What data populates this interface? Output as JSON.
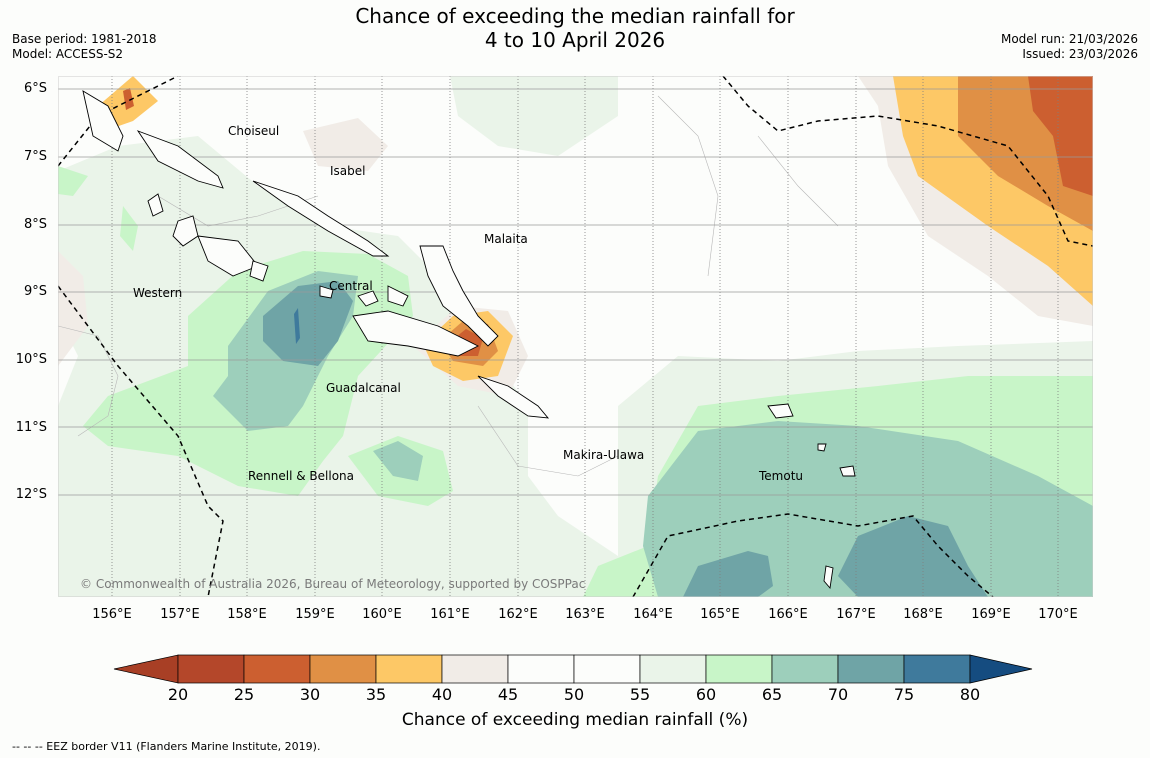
{
  "title": {
    "line1": "Chance of exceeding the median rainfall for",
    "line2": "4 to 10 April 2026"
  },
  "meta_left": {
    "base_period": "Base period: 1981-2018",
    "model": "Model: ACCESS-S2"
  },
  "meta_right": {
    "model_run": "Model run: 21/03/2026",
    "issued": "Issued: 23/03/2026"
  },
  "latitudes": [
    "6°S",
    "7°S",
    "8°S",
    "9°S",
    "10°S",
    "11°S",
    "12°S"
  ],
  "longitudes": [
    "156°E",
    "157°E",
    "158°E",
    "159°E",
    "160°E",
    "161°E",
    "162°E",
    "163°E",
    "164°E",
    "165°E",
    "166°E",
    "167°E",
    "168°E",
    "169°E",
    "170°E"
  ],
  "provinces": [
    "Choiseul",
    "Isabel",
    "Malaita",
    "Western",
    "Central",
    "Guadalcanal",
    "Makira-Ulawa",
    "Rennell & Bellona",
    "Temotu"
  ],
  "copyright": "© Commonwealth of Australia 2026, Bureau of Meteorology, supported by COSPPac",
  "colorbar": {
    "ticks": [
      "20",
      "25",
      "30",
      "35",
      "40",
      "45",
      "50",
      "55",
      "60",
      "65",
      "70",
      "75",
      "80"
    ],
    "label": "Chance of exceeding median rainfall (%)",
    "colors": [
      "#a83f25",
      "#b4472a",
      "#cc5f30",
      "#e09045",
      "#fdc866",
      "#f1ece7",
      "#fcfdfb",
      "#fcfdfb",
      "#eaf4e9",
      "#c8f5c8",
      "#9dcfbb",
      "#6fa4a6",
      "#3f7a9c",
      "#154c80"
    ]
  },
  "footnote": "--  --  -- EEZ border V11 (Flanders Marine Institute, 2019)."
}
